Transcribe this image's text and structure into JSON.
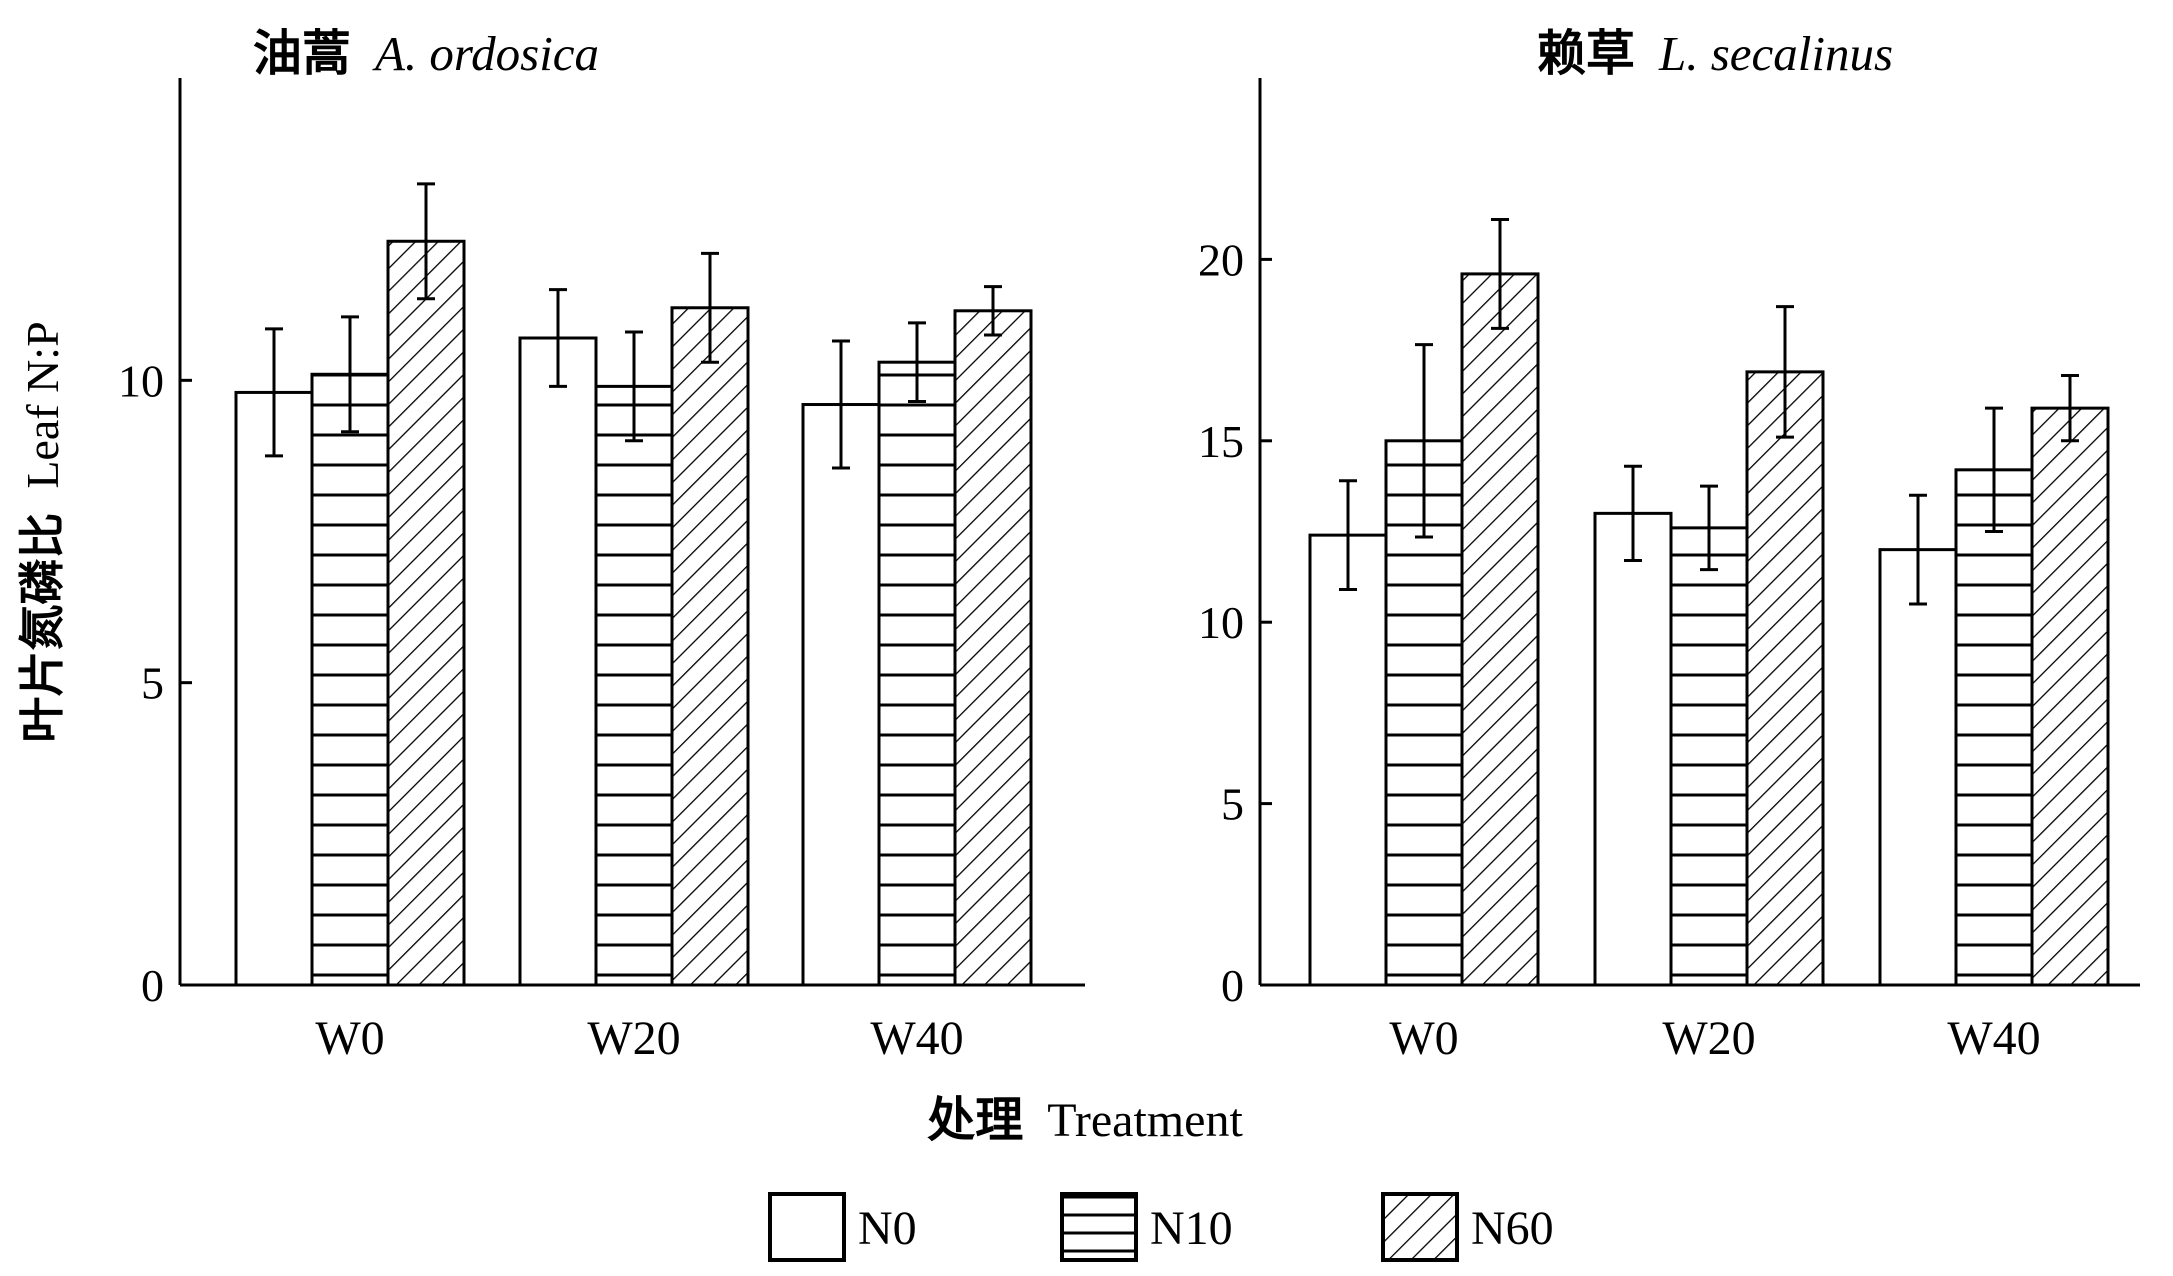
{
  "colors": {
    "ink": "#000000",
    "background": "#ffffff"
  },
  "shared": {
    "ylabel_cn": "叶片氮磷比",
    "ylabel_en": "Leaf N:P",
    "xlabel_cn": "处理",
    "xlabel_en": "Treatment",
    "legend": [
      {
        "name": "N0",
        "pattern": "none"
      },
      {
        "name": "N10",
        "pattern": "horizontal"
      },
      {
        "name": "N60",
        "pattern": "diagonal"
      }
    ]
  },
  "chart_data": [
    {
      "type": "bar",
      "title_cn": "油蒿",
      "title_latin": "A. ordosica",
      "categories": [
        "W0",
        "W20",
        "W40"
      ],
      "ylim": [
        0,
        15
      ],
      "yticks": [
        0,
        5,
        10
      ],
      "series": [
        {
          "name": "N0",
          "values": [
            9.8,
            10.7,
            9.6
          ],
          "errors": [
            1.05,
            0.8,
            1.05
          ]
        },
        {
          "name": "N10",
          "values": [
            10.1,
            9.9,
            10.3
          ],
          "errors": [
            0.95,
            0.9,
            0.65
          ]
        },
        {
          "name": "N60",
          "values": [
            12.3,
            11.2,
            11.15
          ],
          "errors": [
            0.95,
            0.9,
            0.4
          ]
        }
      ]
    },
    {
      "type": "bar",
      "title_cn": "赖草",
      "title_latin": "L. secalinus",
      "categories": [
        "W0",
        "W20",
        "W40"
      ],
      "ylim": [
        0,
        25
      ],
      "yticks": [
        0,
        5,
        10,
        15,
        20
      ],
      "series": [
        {
          "name": "N0",
          "values": [
            12.4,
            13.0,
            12.0
          ],
          "errors": [
            1.5,
            1.3,
            1.5
          ]
        },
        {
          "name": "N10",
          "values": [
            15.0,
            12.6,
            14.2
          ],
          "errors": [
            2.65,
            1.15,
            1.7
          ]
        },
        {
          "name": "N60",
          "values": [
            19.6,
            16.9,
            15.9
          ],
          "errors": [
            1.5,
            1.8,
            0.9
          ]
        }
      ]
    }
  ]
}
